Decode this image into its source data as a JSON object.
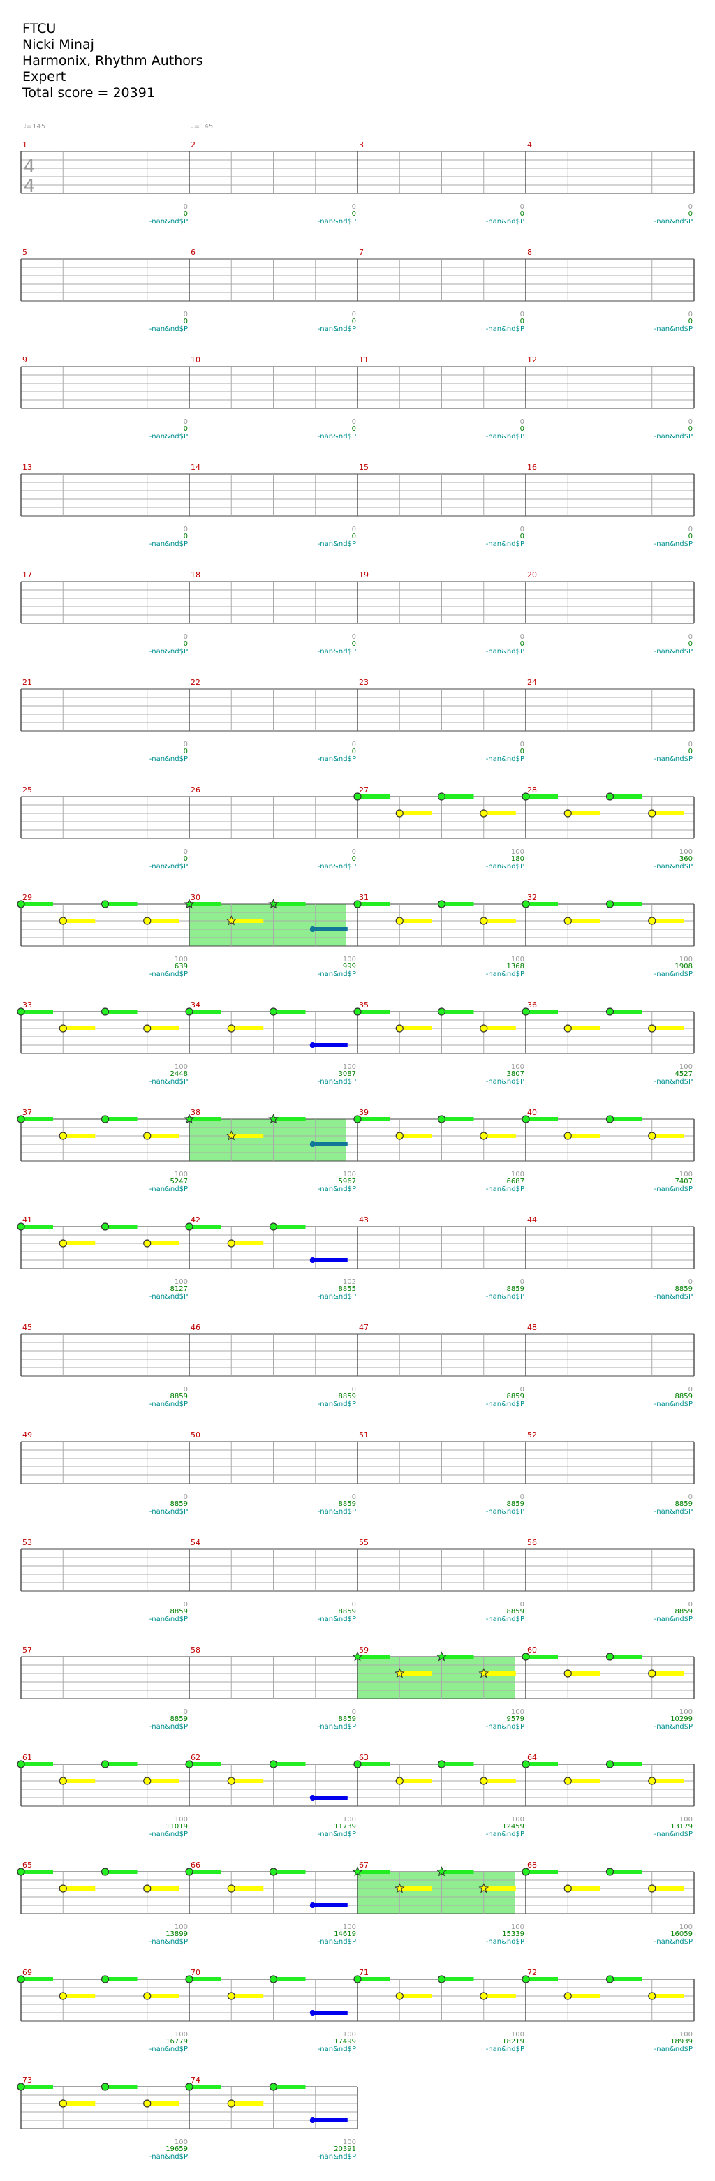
{
  "header": {
    "song": "FTCU",
    "artist": "Nicki Minaj",
    "charter": "Harmonix, Rhythm Authors",
    "difficulty": "Expert",
    "total": "Total score = 20391"
  },
  "tempo": [
    "♩=145",
    "♩=145"
  ],
  "time_signature": [
    "4",
    "4"
  ],
  "colors": {
    "green_note": "#22ee22",
    "yellow_note": "#ffff00",
    "overdrive_region": "#90ee90",
    "sustain_blue": "#0000ee",
    "sustain_teal": "#117799",
    "measure_number": "#c00000",
    "score": "#008000",
    "subtext": "#009090",
    "staff_line": "#aaaaaa",
    "barline": "#555555"
  },
  "icons": [
    "note-circle-icon",
    "star-note-icon",
    "overdrive-phrase",
    "sustain-bar"
  ],
  "rows": [
    {
      "first_measure": 1,
      "m100": [
        "0",
        "0",
        "0",
        "0"
      ],
      "scores": [
        "0",
        "0",
        "0",
        "0"
      ],
      "sub": [
        "-nan&nd$P",
        "-nan&nd$P",
        "-nan&nd$P",
        "-nan&nd$P"
      ]
    },
    {
      "first_measure": 5,
      "m100": [
        "0",
        "0",
        "0",
        "0"
      ],
      "scores": [
        "0",
        "0",
        "0",
        "0"
      ],
      "sub": [
        "-nan&nd$P",
        "-nan&nd$P",
        "-nan&nd$P",
        "-nan&nd$P"
      ]
    },
    {
      "first_measure": 9,
      "m100": [
        "0",
        "0",
        "0",
        "0"
      ],
      "scores": [
        "0",
        "0",
        "0",
        "0"
      ],
      "sub": [
        "-nan&nd$P",
        "-nan&nd$P",
        "-nan&nd$P",
        "-nan&nd$P"
      ]
    },
    {
      "first_measure": 13,
      "m100": [
        "0",
        "0",
        "0",
        "0"
      ],
      "scores": [
        "0",
        "0",
        "0",
        "0"
      ],
      "sub": [
        "-nan&nd$P",
        "-nan&nd$P",
        "-nan&nd$P",
        "-nan&nd$P"
      ]
    },
    {
      "first_measure": 17,
      "m100": [
        "0",
        "0",
        "0",
        "0"
      ],
      "scores": [
        "0",
        "0",
        "0",
        "0"
      ],
      "sub": [
        "-nan&nd$P",
        "-nan&nd$P",
        "-nan&nd$P",
        "-nan&nd$P"
      ]
    },
    {
      "first_measure": 21,
      "m100": [
        "0",
        "0",
        "0",
        "0"
      ],
      "scores": [
        "0",
        "0",
        "0",
        "0"
      ],
      "sub": [
        "-nan&nd$P",
        "-nan&nd$P",
        "-nan&nd$P",
        "-nan&nd$P"
      ]
    },
    {
      "first_measure": 25,
      "m100": [
        "0",
        "0",
        "100",
        "100"
      ],
      "scores": [
        "0",
        "0",
        "180",
        "360"
      ],
      "sub": [
        "-nan&nd$P",
        "-nan&nd$P",
        "-nan&nd$P",
        "-nan&nd$P"
      ]
    },
    {
      "first_measure": 29,
      "m100": [
        "100",
        "100",
        "100",
        "100"
      ],
      "scores": [
        "639",
        "999",
        "1368",
        "1908"
      ],
      "sub": [
        "-nan&nd$P",
        "-nan&nd$P",
        "-nan&nd$P",
        "-nan&nd$P"
      ]
    },
    {
      "first_measure": 33,
      "m100": [
        "100",
        "100",
        "100",
        "100"
      ],
      "scores": [
        "2448",
        "3087",
        "3807",
        "4527"
      ],
      "sub": [
        "-nan&nd$P",
        "-nan&nd$P",
        "-nan&nd$P",
        "-nan&nd$P"
      ]
    },
    {
      "first_measure": 37,
      "m100": [
        "100",
        "100",
        "100",
        "100"
      ],
      "scores": [
        "5247",
        "5967",
        "6687",
        "7407"
      ],
      "sub": [
        "-nan&nd$P",
        "-nan&nd$P",
        "-nan&nd$P",
        "-nan&nd$P"
      ]
    },
    {
      "first_measure": 41,
      "m100": [
        "100",
        "102",
        "0",
        "0"
      ],
      "scores": [
        "8127",
        "8855",
        "8859",
        "8859"
      ],
      "sub": [
        "-nan&nd$P",
        "-nan&nd$P",
        "-nan&nd$P",
        "-nan&nd$P"
      ]
    },
    {
      "first_measure": 45,
      "m100": [
        "0",
        "0",
        "0",
        "0"
      ],
      "scores": [
        "8859",
        "8859",
        "8859",
        "8859"
      ],
      "sub": [
        "-nan&nd$P",
        "-nan&nd$P",
        "-nan&nd$P",
        "-nan&nd$P"
      ]
    },
    {
      "first_measure": 49,
      "m100": [
        "0",
        "0",
        "0",
        "0"
      ],
      "scores": [
        "8859",
        "8859",
        "8859",
        "8859"
      ],
      "sub": [
        "-nan&nd$P",
        "-nan&nd$P",
        "-nan&nd$P",
        "-nan&nd$P"
      ]
    },
    {
      "first_measure": 53,
      "m100": [
        "0",
        "0",
        "0",
        "0"
      ],
      "scores": [
        "8859",
        "8859",
        "8859",
        "8859"
      ],
      "sub": [
        "-nan&nd$P",
        "-nan&nd$P",
        "-nan&nd$P",
        "-nan&nd$P"
      ]
    },
    {
      "first_measure": 57,
      "m100": [
        "0",
        "0",
        "100",
        "100"
      ],
      "scores": [
        "8859",
        "8859",
        "9579",
        "10299"
      ],
      "sub": [
        "-nan&nd$P",
        "-nan&nd$P",
        "-nan&nd$P",
        "-nan&nd$P"
      ]
    },
    {
      "first_measure": 61,
      "m100": [
        "100",
        "100",
        "100",
        "100"
      ],
      "scores": [
        "11019",
        "11739",
        "12459",
        "13179"
      ],
      "sub": [
        "-nan&nd$P",
        "-nan&nd$P",
        "-nan&nd$P",
        "-nan&nd$P"
      ]
    },
    {
      "first_measure": 65,
      "m100": [
        "100",
        "100",
        "100",
        "100"
      ],
      "scores": [
        "13899",
        "14619",
        "15339",
        "16059"
      ],
      "sub": [
        "-nan&nd$P",
        "-nan&nd$P",
        "-nan&nd$P",
        "-nan&nd$P"
      ]
    },
    {
      "first_measure": 69,
      "m100": [
        "100",
        "100",
        "100",
        "100"
      ],
      "scores": [
        "16779",
        "17499",
        "18219",
        "18939"
      ],
      "sub": [
        "-nan&nd$P",
        "-nan&nd$P",
        "-nan&nd$P",
        "-nan&nd$P"
      ]
    },
    {
      "first_measure": 73,
      "m100": [
        "100",
        "100"
      ],
      "scores": [
        "19659",
        "20391"
      ],
      "sub": [
        "-nan&nd$P",
        "-nan&nd$P"
      ]
    }
  ],
  "note_measures": [
    27,
    28,
    29,
    30,
    31,
    32,
    33,
    34,
    35,
    36,
    37,
    38,
    39,
    40,
    41,
    42,
    59,
    60,
    61,
    62,
    63,
    64,
    65,
    66,
    67,
    68,
    69,
    70,
    71,
    72,
    73,
    74
  ],
  "overdrive_measures": [
    30,
    38,
    59,
    67
  ],
  "star_measures": [
    30,
    38,
    59,
    67
  ],
  "blue_sustain_measures": [
    30,
    34,
    38,
    42,
    62,
    66,
    70,
    74
  ],
  "teal_sustain_measures": [
    30,
    38
  ]
}
